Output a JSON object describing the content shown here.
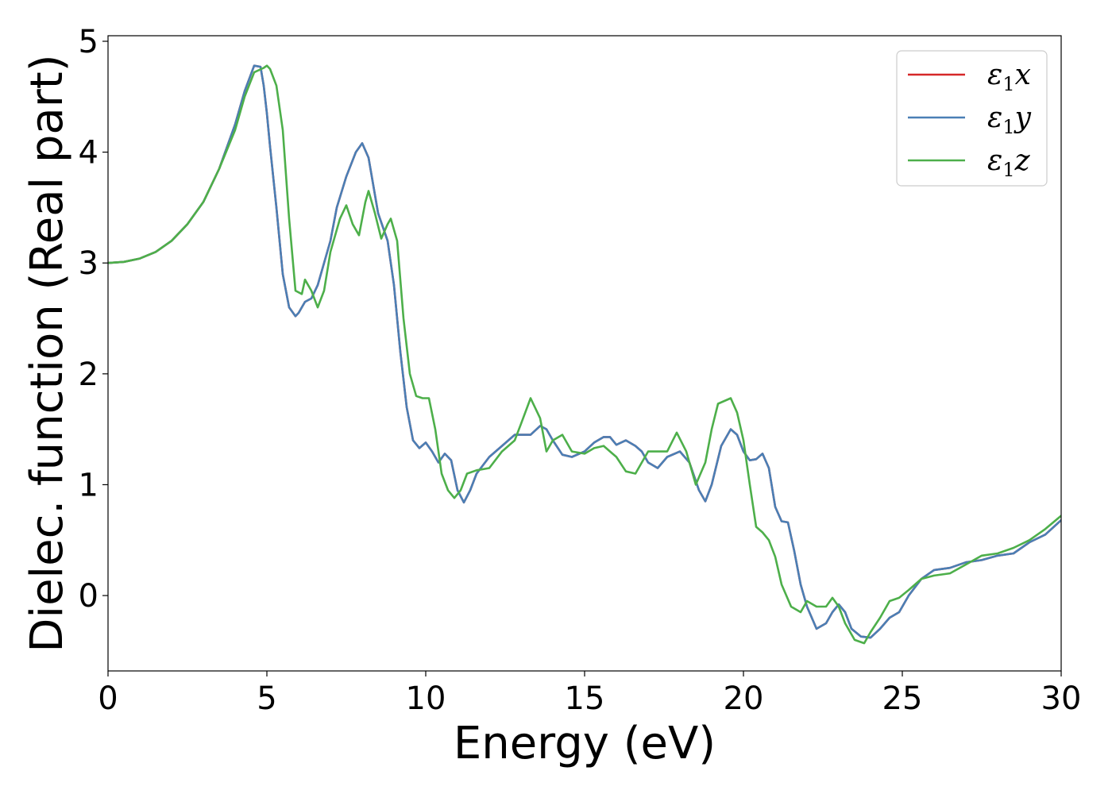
{
  "chart_data": {
    "type": "line",
    "title": "",
    "xlabel": "Energy (eV)",
    "ylabel": "Dielec. function (Real part)",
    "xlim": [
      0,
      30
    ],
    "ylim": [
      -0.68,
      5.05
    ],
    "xticks": [
      0,
      5,
      10,
      15,
      20,
      25,
      30
    ],
    "yticks": [
      0,
      1,
      2,
      3,
      4,
      5
    ],
    "xtick_labels": [
      "0",
      "5",
      "10",
      "15",
      "20",
      "25",
      "30"
    ],
    "ytick_labels": [
      "0",
      "1",
      "2",
      "3",
      "4",
      "5"
    ],
    "grid": false,
    "legend_position": "top-right",
    "series": [
      {
        "name": "ε1x",
        "legend_main": "ε",
        "legend_sub": "1",
        "legend_var": "x",
        "color": "#d62728",
        "x": [
          0,
          0.5,
          1,
          1.5,
          2,
          2.5,
          3,
          3.5,
          4,
          4.3,
          4.6,
          4.8,
          4.9,
          5.0,
          5.1,
          5.3,
          5.5,
          5.7,
          5.9,
          6.0,
          6.2,
          6.4,
          6.6,
          6.8,
          7.0,
          7.2,
          7.5,
          7.8,
          8.0,
          8.2,
          8.5,
          8.8,
          9.0,
          9.2,
          9.4,
          9.6,
          9.8,
          10.0,
          10.2,
          10.4,
          10.6,
          10.8,
          11.0,
          11.2,
          11.4,
          11.6,
          12.0,
          12.4,
          12.8,
          13.0,
          13.3,
          13.6,
          13.8,
          14.0,
          14.3,
          14.6,
          15.0,
          15.3,
          15.6,
          15.8,
          16.0,
          16.3,
          16.6,
          16.8,
          17.0,
          17.3,
          17.6,
          18.0,
          18.3,
          18.6,
          18.8,
          19.0,
          19.3,
          19.6,
          19.8,
          20.0,
          20.2,
          20.4,
          20.6,
          20.8,
          21.0,
          21.2,
          21.4,
          21.6,
          21.8,
          22.0,
          22.3,
          22.6,
          22.8,
          23.0,
          23.2,
          23.4,
          23.7,
          24.0,
          24.3,
          24.6,
          24.9,
          25.2,
          25.6,
          26.0,
          26.5,
          27.0,
          27.5,
          28.0,
          28.5,
          29.0,
          29.5,
          30.0
        ],
        "y": [
          3.0,
          3.01,
          3.04,
          3.1,
          3.2,
          3.35,
          3.55,
          3.85,
          4.25,
          4.55,
          4.78,
          4.77,
          4.6,
          4.35,
          4.05,
          3.5,
          2.9,
          2.6,
          2.52,
          2.55,
          2.65,
          2.68,
          2.8,
          3.0,
          3.2,
          3.5,
          3.78,
          4.0,
          4.08,
          3.95,
          3.45,
          3.2,
          2.8,
          2.2,
          1.7,
          1.4,
          1.33,
          1.38,
          1.3,
          1.2,
          1.28,
          1.22,
          0.95,
          0.84,
          0.95,
          1.1,
          1.25,
          1.35,
          1.45,
          1.45,
          1.45,
          1.53,
          1.5,
          1.4,
          1.27,
          1.25,
          1.3,
          1.38,
          1.43,
          1.43,
          1.36,
          1.4,
          1.35,
          1.3,
          1.2,
          1.15,
          1.25,
          1.3,
          1.2,
          0.95,
          0.85,
          1.0,
          1.35,
          1.5,
          1.45,
          1.3,
          1.22,
          1.23,
          1.28,
          1.15,
          0.8,
          0.67,
          0.66,
          0.4,
          0.1,
          -0.1,
          -0.3,
          -0.25,
          -0.15,
          -0.08,
          -0.15,
          -0.3,
          -0.37,
          -0.38,
          -0.3,
          -0.2,
          -0.15,
          0.0,
          0.15,
          0.23,
          0.25,
          0.3,
          0.32,
          0.36,
          0.38,
          0.48,
          0.55,
          0.68
        ]
      },
      {
        "name": "ε1y",
        "legend_main": "ε",
        "legend_sub": "1",
        "legend_var": "y",
        "color": "#4a7fb5",
        "x": [
          0,
          0.5,
          1,
          1.5,
          2,
          2.5,
          3,
          3.5,
          4,
          4.3,
          4.6,
          4.8,
          4.9,
          5.0,
          5.1,
          5.3,
          5.5,
          5.7,
          5.9,
          6.0,
          6.2,
          6.4,
          6.6,
          6.8,
          7.0,
          7.2,
          7.5,
          7.8,
          8.0,
          8.2,
          8.5,
          8.8,
          9.0,
          9.2,
          9.4,
          9.6,
          9.8,
          10.0,
          10.2,
          10.4,
          10.6,
          10.8,
          11.0,
          11.2,
          11.4,
          11.6,
          12.0,
          12.4,
          12.8,
          13.0,
          13.3,
          13.6,
          13.8,
          14.0,
          14.3,
          14.6,
          15.0,
          15.3,
          15.6,
          15.8,
          16.0,
          16.3,
          16.6,
          16.8,
          17.0,
          17.3,
          17.6,
          18.0,
          18.3,
          18.6,
          18.8,
          19.0,
          19.3,
          19.6,
          19.8,
          20.0,
          20.2,
          20.4,
          20.6,
          20.8,
          21.0,
          21.2,
          21.4,
          21.6,
          21.8,
          22.0,
          22.3,
          22.6,
          22.8,
          23.0,
          23.2,
          23.4,
          23.7,
          24.0,
          24.3,
          24.6,
          24.9,
          25.2,
          25.6,
          26.0,
          26.5,
          27.0,
          27.5,
          28.0,
          28.5,
          29.0,
          29.5,
          30.0
        ],
        "y": [
          3.0,
          3.01,
          3.04,
          3.1,
          3.2,
          3.35,
          3.55,
          3.85,
          4.25,
          4.55,
          4.78,
          4.77,
          4.6,
          4.35,
          4.05,
          3.5,
          2.9,
          2.6,
          2.52,
          2.55,
          2.65,
          2.68,
          2.8,
          3.0,
          3.2,
          3.5,
          3.78,
          4.0,
          4.08,
          3.95,
          3.45,
          3.2,
          2.8,
          2.2,
          1.7,
          1.4,
          1.33,
          1.38,
          1.3,
          1.2,
          1.28,
          1.22,
          0.95,
          0.84,
          0.95,
          1.1,
          1.25,
          1.35,
          1.45,
          1.45,
          1.45,
          1.53,
          1.5,
          1.4,
          1.27,
          1.25,
          1.3,
          1.38,
          1.43,
          1.43,
          1.36,
          1.4,
          1.35,
          1.3,
          1.2,
          1.15,
          1.25,
          1.3,
          1.2,
          0.95,
          0.85,
          1.0,
          1.35,
          1.5,
          1.45,
          1.3,
          1.22,
          1.23,
          1.28,
          1.15,
          0.8,
          0.67,
          0.66,
          0.4,
          0.1,
          -0.1,
          -0.3,
          -0.25,
          -0.15,
          -0.08,
          -0.15,
          -0.3,
          -0.37,
          -0.38,
          -0.3,
          -0.2,
          -0.15,
          0.0,
          0.15,
          0.23,
          0.25,
          0.3,
          0.32,
          0.36,
          0.38,
          0.48,
          0.55,
          0.68
        ]
      },
      {
        "name": "ε1z",
        "legend_main": "ε",
        "legend_sub": "1",
        "legend_var": "z",
        "color": "#4daf4a",
        "x": [
          0,
          0.5,
          1,
          1.5,
          2,
          2.5,
          3,
          3.5,
          4,
          4.3,
          4.6,
          4.9,
          5.0,
          5.1,
          5.3,
          5.5,
          5.7,
          5.9,
          6.1,
          6.2,
          6.4,
          6.6,
          6.8,
          7.0,
          7.3,
          7.5,
          7.7,
          7.9,
          8.1,
          8.2,
          8.4,
          8.6,
          8.8,
          8.9,
          9.1,
          9.3,
          9.5,
          9.7,
          9.9,
          10.1,
          10.3,
          10.5,
          10.7,
          10.9,
          11.1,
          11.3,
          11.6,
          12.0,
          12.4,
          12.8,
          13.0,
          13.3,
          13.6,
          13.8,
          14.0,
          14.3,
          14.6,
          15.0,
          15.3,
          15.6,
          15.8,
          16.0,
          16.3,
          16.6,
          16.8,
          17.0,
          17.3,
          17.6,
          17.9,
          18.2,
          18.5,
          18.8,
          19.0,
          19.2,
          19.6,
          19.8,
          20.0,
          20.2,
          20.4,
          20.6,
          20.8,
          21.0,
          21.2,
          21.5,
          21.8,
          22.0,
          22.3,
          22.6,
          22.8,
          23.0,
          23.2,
          23.5,
          23.8,
          24.0,
          24.3,
          24.6,
          24.9,
          25.2,
          25.6,
          26.0,
          26.5,
          27.0,
          27.5,
          28.0,
          28.5,
          29.0,
          29.5,
          30.0
        ],
        "y": [
          3.0,
          3.01,
          3.04,
          3.1,
          3.2,
          3.35,
          3.55,
          3.85,
          4.2,
          4.5,
          4.72,
          4.76,
          4.78,
          4.75,
          4.6,
          4.2,
          3.4,
          2.75,
          2.72,
          2.85,
          2.75,
          2.6,
          2.75,
          3.1,
          3.4,
          3.52,
          3.35,
          3.25,
          3.55,
          3.65,
          3.45,
          3.22,
          3.35,
          3.4,
          3.2,
          2.5,
          2.0,
          1.8,
          1.78,
          1.78,
          1.5,
          1.1,
          0.95,
          0.88,
          0.95,
          1.1,
          1.13,
          1.15,
          1.3,
          1.4,
          1.55,
          1.78,
          1.6,
          1.3,
          1.4,
          1.45,
          1.3,
          1.28,
          1.33,
          1.35,
          1.3,
          1.25,
          1.12,
          1.1,
          1.2,
          1.3,
          1.3,
          1.3,
          1.47,
          1.3,
          1.0,
          1.2,
          1.5,
          1.73,
          1.78,
          1.65,
          1.4,
          1.0,
          0.62,
          0.57,
          0.5,
          0.35,
          0.1,
          -0.1,
          -0.15,
          -0.05,
          -0.1,
          -0.1,
          -0.02,
          -0.1,
          -0.25,
          -0.4,
          -0.43,
          -0.33,
          -0.2,
          -0.05,
          -0.02,
          0.05,
          0.15,
          0.18,
          0.2,
          0.28,
          0.36,
          0.38,
          0.43,
          0.5,
          0.6,
          0.72
        ]
      }
    ]
  }
}
